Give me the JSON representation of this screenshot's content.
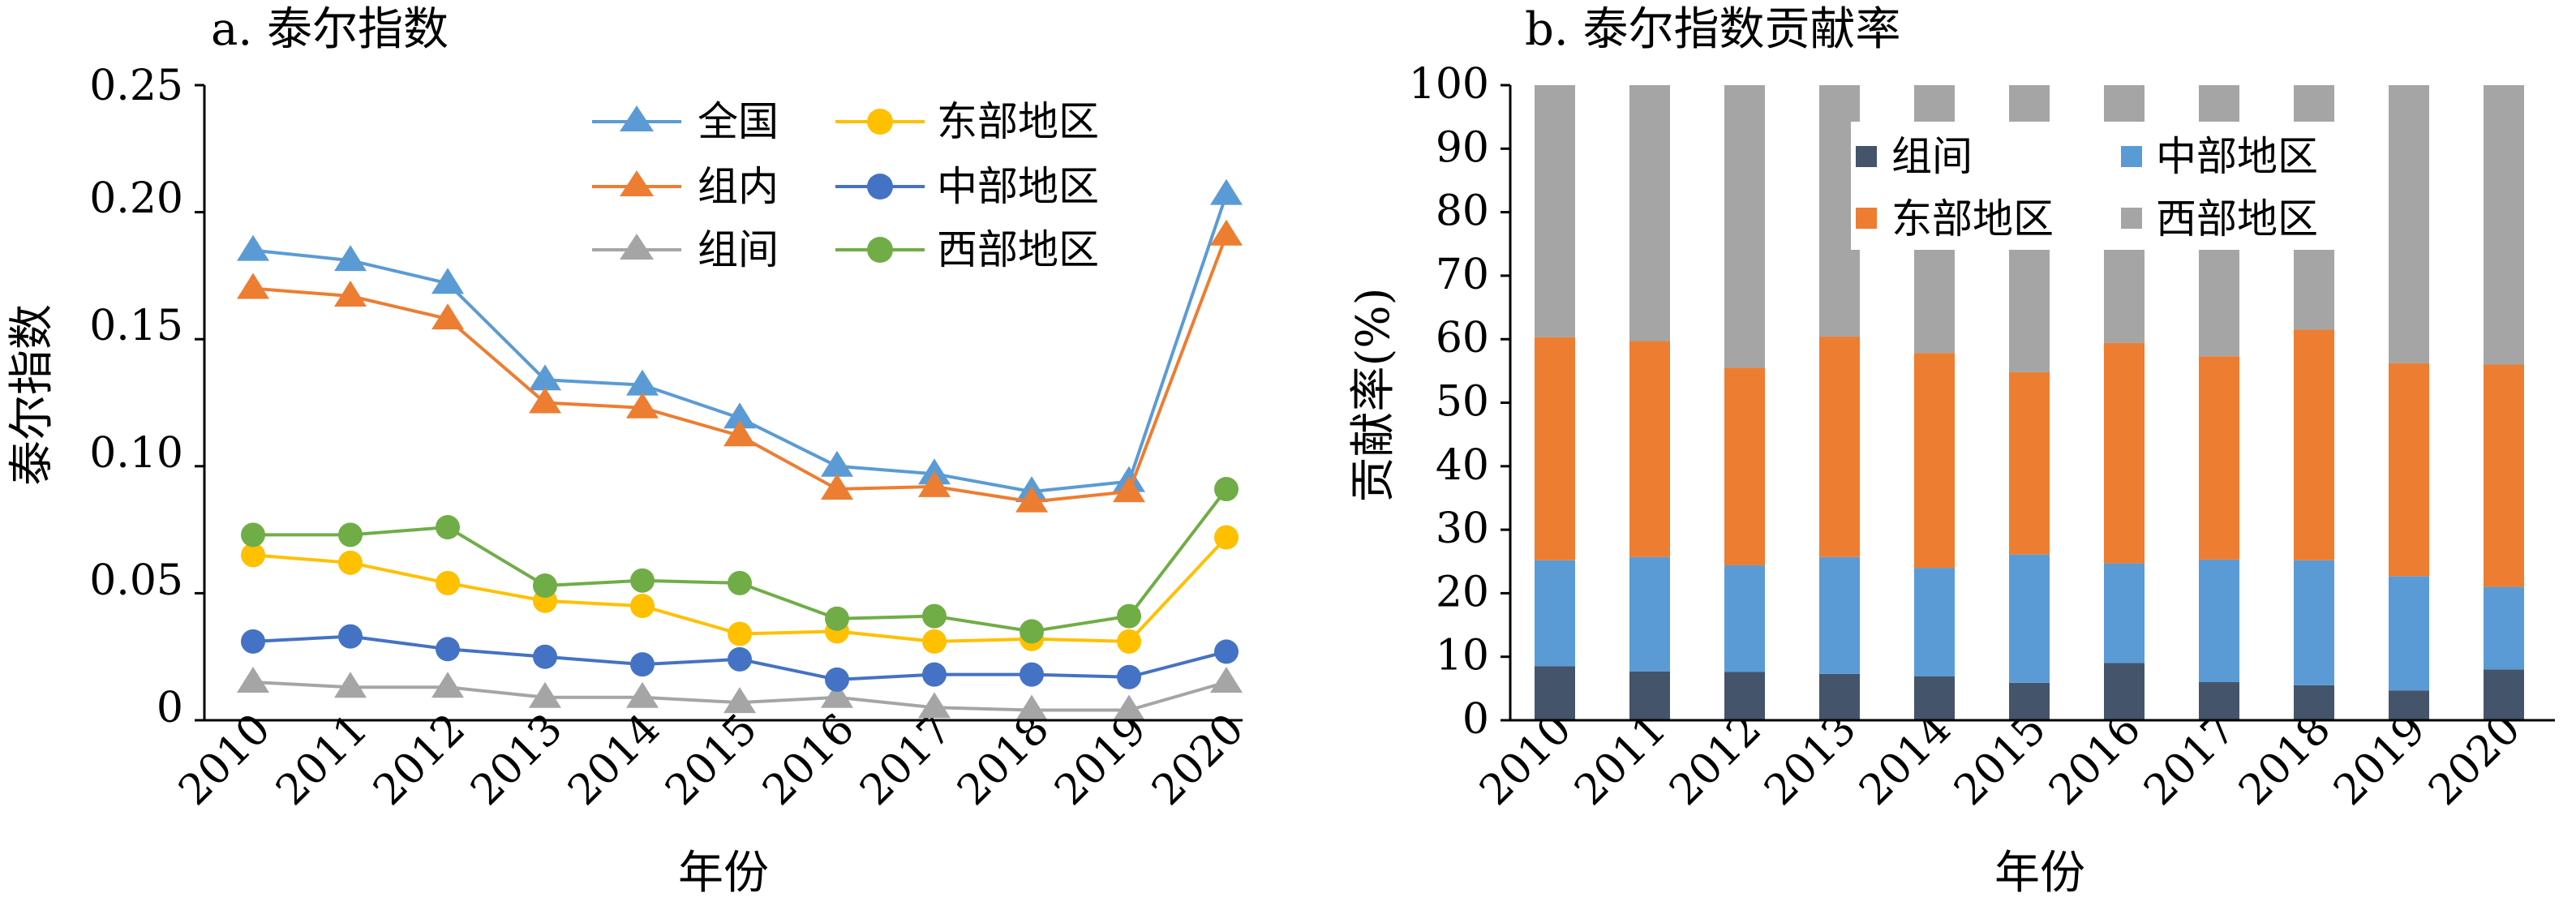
{
  "chart_data": [
    {
      "type": "line",
      "title": "a. 泰尔指数",
      "xlabel": "年份",
      "ylabel": "泰尔指数",
      "x": [
        "2010",
        "2011",
        "2012",
        "2013",
        "2014",
        "2015",
        "2016",
        "2017",
        "2018",
        "2019",
        "2020"
      ],
      "ylim": [
        0,
        0.25
      ],
      "yticks": [
        "0",
        "0.05",
        "0.10",
        "0.15",
        "0.20",
        "0.25"
      ],
      "grid": false,
      "legend_position": "top-right",
      "series": [
        {
          "name": "全国",
          "color": "#5b9bd5",
          "marker": "triangle",
          "values": [
            0.185,
            0.181,
            0.172,
            0.134,
            0.132,
            0.119,
            0.1,
            0.097,
            0.09,
            0.094,
            0.207
          ]
        },
        {
          "name": "组内",
          "color": "#ed7d31",
          "marker": "triangle",
          "values": [
            0.17,
            0.167,
            0.158,
            0.125,
            0.123,
            0.112,
            0.091,
            0.092,
            0.086,
            0.09,
            0.191
          ]
        },
        {
          "name": "组间",
          "color": "#a5a5a5",
          "marker": "triangle",
          "values": [
            0.015,
            0.013,
            0.013,
            0.009,
            0.009,
            0.007,
            0.009,
            0.005,
            0.004,
            0.004,
            0.015
          ]
        },
        {
          "name": "东部地区",
          "color": "#ffc000",
          "marker": "circle",
          "values": [
            0.065,
            0.062,
            0.054,
            0.047,
            0.045,
            0.034,
            0.035,
            0.031,
            0.032,
            0.031,
            0.072
          ]
        },
        {
          "name": "中部地区",
          "color": "#4472c4",
          "marker": "circle",
          "values": [
            0.031,
            0.033,
            0.028,
            0.025,
            0.022,
            0.024,
            0.016,
            0.018,
            0.018,
            0.017,
            0.027
          ]
        },
        {
          "name": "西部地区",
          "color": "#70ad47",
          "marker": "circle",
          "values": [
            0.073,
            0.073,
            0.076,
            0.053,
            0.055,
            0.054,
            0.04,
            0.041,
            0.035,
            0.041,
            0.091
          ]
        }
      ]
    },
    {
      "type": "bar",
      "stacked": true,
      "title": "b. 泰尔指数贡献率",
      "xlabel": "年份",
      "ylabel": "贡献率(%)",
      "categories": [
        "2010",
        "2011",
        "2012",
        "2013",
        "2014",
        "2015",
        "2016",
        "2017",
        "2018",
        "2019",
        "2020"
      ],
      "ylim": [
        0,
        100
      ],
      "yticks": [
        "0",
        "10",
        "20",
        "30",
        "40",
        "50",
        "60",
        "70",
        "80",
        "90",
        "100"
      ],
      "grid": false,
      "legend_position": "top",
      "series": [
        {
          "name": "组间",
          "color": "#44546a",
          "values": [
            8.5,
            7.7,
            7.6,
            7.3,
            6.9,
            5.9,
            9.0,
            6.0,
            5.5,
            4.7,
            8.0
          ]
        },
        {
          "name": "中部地区",
          "color": "#5b9bd5",
          "values": [
            16.7,
            18.0,
            16.8,
            18.4,
            17.1,
            20.2,
            15.7,
            19.3,
            19.7,
            18.0,
            13.0
          ]
        },
        {
          "name": "东部地区",
          "color": "#ed7d31",
          "values": [
            35.1,
            34.0,
            31.1,
            34.7,
            33.8,
            28.7,
            34.7,
            32.0,
            36.3,
            33.5,
            35.0
          ]
        },
        {
          "name": "西部地区",
          "color": "#a5a5a5",
          "values": [
            39.7,
            40.3,
            44.5,
            39.6,
            42.2,
            45.2,
            40.6,
            42.7,
            38.5,
            43.8,
            44.0
          ]
        }
      ]
    }
  ]
}
